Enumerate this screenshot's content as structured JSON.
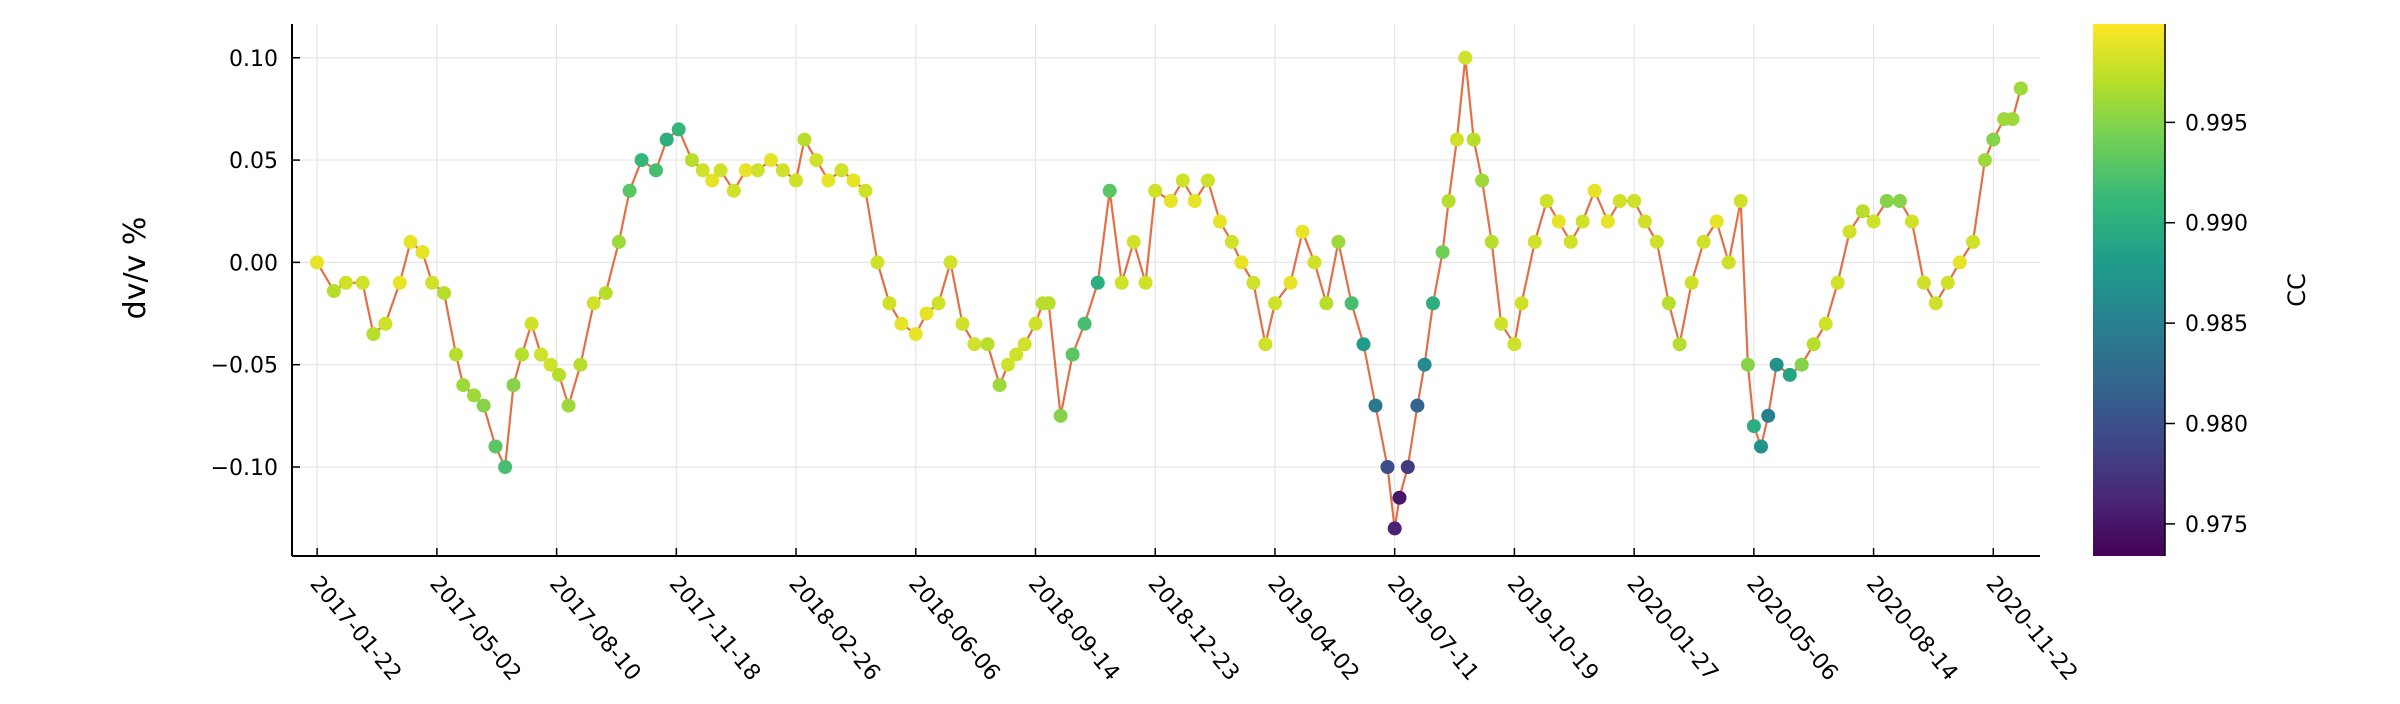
{
  "chart_data": {
    "type": "scatter",
    "title": "",
    "xlabel": "",
    "ylabel": "dv/v %",
    "x_ticks": [
      "2017-01-22",
      "2017-05-02",
      "2017-08-10",
      "2017-11-18",
      "2018-02-26",
      "2018-06-06",
      "2018-09-14",
      "2018-12-23",
      "2019-04-02",
      "2019-07-11",
      "2019-10-19",
      "2020-01-27",
      "2020-05-06",
      "2020-08-14",
      "2020-11-22"
    ],
    "xlim": [
      "2017-01-01",
      "2020-12-31"
    ],
    "y_ticks": [
      0.1,
      0.05,
      0.0,
      -0.05,
      -0.1
    ],
    "y_tick_labels": [
      "0.10",
      "0.05",
      "0.00",
      "−0.05",
      "−0.10"
    ],
    "ylim": [
      -0.1435,
      0.1165
    ],
    "grid": true,
    "line_color": "#e26f46",
    "colorbar": {
      "label": "CC",
      "range": [
        0.9734,
        0.9999
      ],
      "ticks": [
        0.995,
        0.99,
        0.985,
        0.98,
        0.975
      ],
      "tick_labels": [
        "0.995",
        "0.990",
        "0.985",
        "0.980",
        "0.975"
      ],
      "colormap": "viridis",
      "colors": [
        "#440154",
        "#482878",
        "#3e4989",
        "#31688e",
        "#26828e",
        "#1f9e89",
        "#35b779",
        "#6ece58",
        "#b5de2b",
        "#fde725"
      ]
    },
    "series": [
      {
        "x": [
          "2017-01-22",
          "2017-02-05",
          "2017-02-15",
          "2017-03-01",
          "2017-03-10",
          "2017-03-20",
          "2017-04-01",
          "2017-04-10",
          "2017-04-20",
          "2017-04-28",
          "2017-05-08",
          "2017-05-18",
          "2017-05-24",
          "2017-06-02",
          "2017-06-10",
          "2017-06-20",
          "2017-06-28",
          "2017-07-05",
          "2017-07-12",
          "2017-07-20",
          "2017-07-28",
          "2017-08-05",
          "2017-08-12",
          "2017-08-20",
          "2017-08-30",
          "2017-09-10",
          "2017-09-20",
          "2017-10-01",
          "2017-10-10",
          "2017-10-20",
          "2017-11-01",
          "2017-11-10",
          "2017-11-20",
          "2017-12-01",
          "2017-12-10",
          "2017-12-18",
          "2017-12-25",
          "2018-01-05",
          "2018-01-15",
          "2018-01-25",
          "2018-02-05",
          "2018-02-15",
          "2018-02-26",
          "2018-03-05",
          "2018-03-15",
          "2018-03-25",
          "2018-04-05",
          "2018-04-15",
          "2018-04-25",
          "2018-05-05",
          "2018-05-15",
          "2018-05-25",
          "2018-06-06",
          "2018-06-15",
          "2018-06-25",
          "2018-07-05",
          "2018-07-15",
          "2018-07-25",
          "2018-08-05",
          "2018-08-15",
          "2018-08-22",
          "2018-08-29",
          "2018-09-05",
          "2018-09-14",
          "2018-09-20",
          "2018-09-25",
          "2018-10-05",
          "2018-10-15",
          "2018-10-25",
          "2018-11-05",
          "2018-11-15",
          "2018-11-25",
          "2018-12-05",
          "2018-12-15",
          "2018-12-23",
          "2019-01-05",
          "2019-01-15",
          "2019-01-25",
          "2019-02-05",
          "2019-02-15",
          "2019-02-25",
          "2019-03-05",
          "2019-03-15",
          "2019-03-25",
          "2019-04-02",
          "2019-04-15",
          "2019-04-25",
          "2019-05-05",
          "2019-05-15",
          "2019-05-25",
          "2019-06-05",
          "2019-06-15",
          "2019-06-25",
          "2019-07-05",
          "2019-07-11",
          "2019-07-15",
          "2019-07-22",
          "2019-07-30",
          "2019-08-05",
          "2019-08-12",
          "2019-08-20",
          "2019-08-25",
          "2019-09-01",
          "2019-09-08",
          "2019-09-15",
          "2019-09-22",
          "2019-09-30",
          "2019-10-08",
          "2019-10-19",
          "2019-10-25",
          "2019-11-05",
          "2019-11-15",
          "2019-11-25",
          "2019-12-05",
          "2019-12-15",
          "2019-12-25",
          "2020-01-05",
          "2020-01-15",
          "2020-01-27",
          "2020-02-05",
          "2020-02-15",
          "2020-02-25",
          "2020-03-05",
          "2020-03-15",
          "2020-03-25",
          "2020-04-05",
          "2020-04-15",
          "2020-04-25",
          "2020-05-01",
          "2020-05-06",
          "2020-05-12",
          "2020-05-18",
          "2020-05-25",
          "2020-06-05",
          "2020-06-15",
          "2020-06-25",
          "2020-07-05",
          "2020-07-15",
          "2020-07-25",
          "2020-08-05",
          "2020-08-14",
          "2020-08-25",
          "2020-09-05",
          "2020-09-15",
          "2020-09-25",
          "2020-10-05",
          "2020-10-15",
          "2020-10-25",
          "2020-11-05",
          "2020-11-15",
          "2020-11-22",
          "2020-12-01",
          "2020-12-08",
          "2020-12-15"
        ],
        "y": [
          0.0,
          -0.014,
          -0.01,
          -0.01,
          -0.035,
          -0.03,
          -0.01,
          0.01,
          0.005,
          -0.01,
          -0.015,
          -0.045,
          -0.06,
          -0.065,
          -0.07,
          -0.09,
          -0.1,
          -0.06,
          -0.045,
          -0.03,
          -0.045,
          -0.05,
          -0.055,
          -0.07,
          -0.05,
          -0.02,
          -0.015,
          0.01,
          0.035,
          0.05,
          0.045,
          0.06,
          0.065,
          0.05,
          0.045,
          0.04,
          0.045,
          0.035,
          0.045,
          0.045,
          0.05,
          0.045,
          0.04,
          0.06,
          0.05,
          0.04,
          0.045,
          0.04,
          0.035,
          0.0,
          -0.02,
          -0.03,
          -0.035,
          -0.025,
          -0.02,
          0.0,
          -0.03,
          -0.04,
          -0.04,
          -0.06,
          -0.05,
          -0.045,
          -0.04,
          -0.03,
          -0.02,
          -0.02,
          -0.075,
          -0.045,
          -0.03,
          -0.01,
          0.035,
          -0.01,
          0.01,
          -0.01,
          0.035,
          0.03,
          0.04,
          0.03,
          0.04,
          0.02,
          0.01,
          0.0,
          -0.01,
          -0.04,
          -0.02,
          -0.01,
          0.015,
          0.0,
          -0.02,
          0.01,
          -0.02,
          -0.04,
          -0.07,
          -0.1,
          -0.13,
          -0.115,
          -0.1,
          -0.07,
          -0.05,
          -0.02,
          0.005,
          0.03,
          0.06,
          0.1,
          0.06,
          0.04,
          0.01,
          -0.03,
          -0.04,
          -0.02,
          0.01,
          0.03,
          0.02,
          0.01,
          0.02,
          0.035,
          0.02,
          0.03,
          0.03,
          0.02,
          0.01,
          -0.02,
          -0.04,
          -0.01,
          0.01,
          0.02,
          0.0,
          0.03,
          -0.05,
          -0.08,
          -0.09,
          -0.075,
          -0.05,
          -0.055,
          -0.05,
          -0.04,
          -0.03,
          -0.01,
          0.015,
          0.025,
          0.02,
          0.03,
          0.03,
          0.02,
          -0.01,
          -0.02,
          -0.01,
          0.0,
          0.01,
          0.05,
          0.06,
          0.07,
          0.07,
          0.085
        ],
        "cc": [
          0.999,
          0.997,
          0.998,
          0.998,
          0.997,
          0.998,
          0.999,
          0.999,
          0.999,
          0.998,
          0.997,
          0.997,
          0.996,
          0.996,
          0.995,
          0.993,
          0.992,
          0.995,
          0.997,
          0.998,
          0.998,
          0.998,
          0.997,
          0.996,
          0.997,
          0.998,
          0.997,
          0.996,
          0.993,
          0.991,
          0.992,
          0.99,
          0.991,
          0.997,
          0.998,
          0.999,
          0.998,
          0.998,
          0.999,
          0.998,
          0.999,
          0.998,
          0.998,
          0.997,
          0.998,
          0.999,
          0.998,
          0.999,
          0.998,
          0.998,
          0.998,
          0.999,
          0.999,
          0.999,
          0.998,
          0.998,
          0.998,
          0.998,
          0.997,
          0.996,
          0.998,
          0.998,
          0.998,
          0.998,
          0.997,
          0.997,
          0.995,
          0.993,
          0.992,
          0.99,
          0.993,
          0.998,
          0.998,
          0.998,
          0.998,
          0.999,
          0.998,
          0.999,
          0.998,
          0.999,
          0.998,
          0.999,
          0.998,
          0.998,
          0.998,
          0.999,
          0.999,
          0.998,
          0.997,
          0.996,
          0.992,
          0.988,
          0.984,
          0.98,
          0.976,
          0.975,
          0.978,
          0.982,
          0.986,
          0.99,
          0.994,
          0.997,
          0.998,
          0.998,
          0.997,
          0.996,
          0.997,
          0.998,
          0.998,
          0.998,
          0.998,
          0.998,
          0.999,
          0.998,
          0.998,
          0.999,
          0.999,
          0.998,
          0.998,
          0.998,
          0.998,
          0.997,
          0.997,
          0.998,
          0.998,
          0.999,
          0.998,
          0.998,
          0.995,
          0.99,
          0.987,
          0.985,
          0.987,
          0.989,
          0.995,
          0.997,
          0.998,
          0.998,
          0.998,
          0.997,
          0.998,
          0.995,
          0.995,
          0.998,
          0.998,
          0.998,
          0.998,
          0.999,
          0.998,
          0.996,
          0.995,
          0.996,
          0.996,
          0.996
        ]
      }
    ]
  }
}
